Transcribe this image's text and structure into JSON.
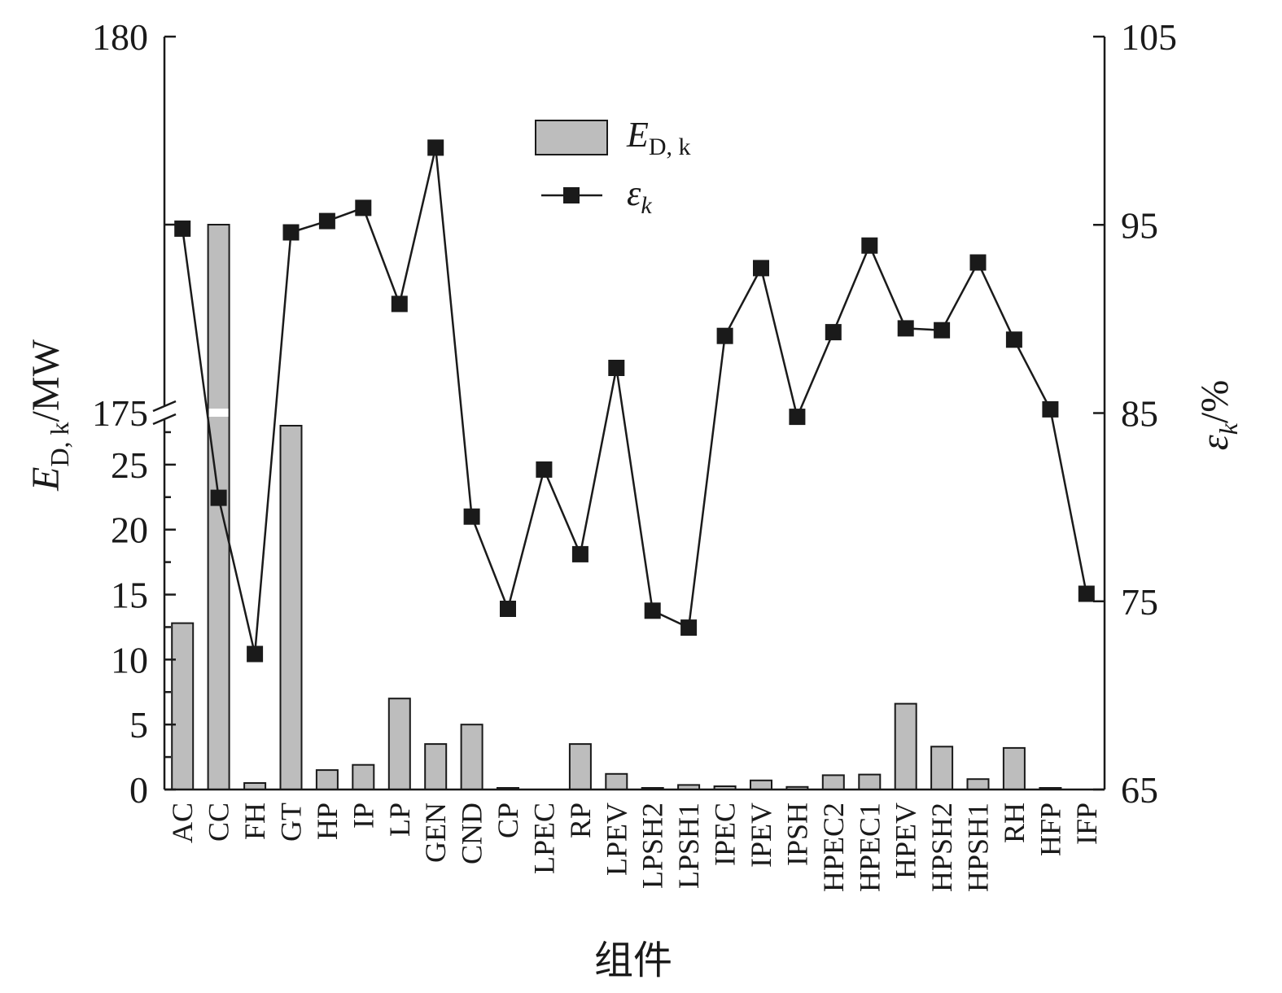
{
  "chart_data": {
    "type": "bar",
    "xlabel": "组件",
    "categories": [
      "AC",
      "CC",
      "FH",
      "GT",
      "HP",
      "IP",
      "LP",
      "GEN",
      "CND",
      "CP",
      "LPEC",
      "RP",
      "LPEV",
      "LPSH2",
      "LPSH1",
      "IPEC",
      "IPEV",
      "IPSH",
      "HPEC2",
      "HPEC1",
      "HPEV",
      "HPSH2",
      "HPSH1",
      "RH",
      "HFP",
      "IFP"
    ],
    "left_axis": {
      "ylabel_main": "E",
      "ylabel_sub": "D, k",
      "ylabel_unit": "/MW",
      "broken": true,
      "lower_range": [
        0,
        29
      ],
      "lower_ticks": [
        "0",
        "5",
        "10",
        "15",
        "20",
        "25"
      ],
      "upper_range": [
        175,
        180
      ],
      "upper_ticks": [
        "175",
        "180"
      ]
    },
    "right_axis": {
      "ylabel_main": "ε",
      "ylabel_sub": "k",
      "ylabel_unit": "/%",
      "range": [
        65,
        105
      ],
      "ticks": [
        "65",
        "75",
        "85",
        "95",
        "105"
      ]
    },
    "series": [
      {
        "name_main": "E",
        "name_sub": "D, k",
        "type": "bar",
        "axis": "left",
        "values": [
          12.8,
          177.5,
          0.5,
          28,
          1.5,
          1.9,
          7.0,
          3.5,
          5.0,
          0.1,
          0,
          3.5,
          1.2,
          0.1,
          0.35,
          0.25,
          0.7,
          0.2,
          1.1,
          1.15,
          6.6,
          3.3,
          0.8,
          3.2,
          0.1,
          0
        ]
      },
      {
        "name_main": "ε",
        "name_sub": "k",
        "type": "line",
        "axis": "right",
        "marker": "square",
        "values": [
          94.8,
          80.5,
          72.2,
          94.6,
          95.2,
          95.9,
          90.8,
          99.1,
          79.5,
          74.6,
          82.0,
          77.5,
          87.4,
          74.5,
          73.6,
          89.1,
          92.7,
          84.8,
          89.3,
          93.9,
          89.5,
          89.4,
          93.0,
          88.9,
          85.2,
          75.4
        ]
      }
    ],
    "legend": "top-center",
    "grid": false
  }
}
